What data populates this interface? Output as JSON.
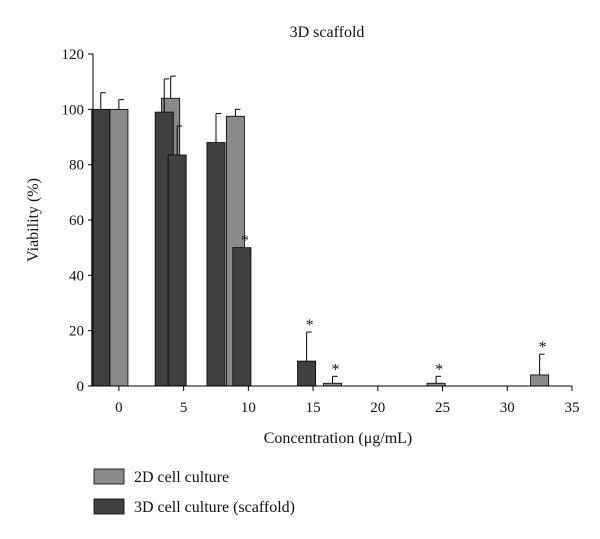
{
  "chart_data": {
    "type": "bar",
    "title": "3D scaffold",
    "xlabel": "Concentration (μg/mL)",
    "ylabel": "Viability (%)",
    "xlim": [
      -2,
      35
    ],
    "ylim": [
      0,
      120
    ],
    "xticks": [
      0,
      5,
      10,
      15,
      20,
      25,
      30,
      35
    ],
    "yticks": [
      0,
      20,
      40,
      60,
      80,
      100,
      120
    ],
    "grid": false,
    "legend_position": "bottom-left",
    "bar_width": 1.4,
    "series": [
      {
        "name": "2D cell culture",
        "color": "#8a8a8a",
        "bars": [
          {
            "x": 0,
            "value": 100,
            "error": 3.5,
            "significant": false
          },
          {
            "x": 4,
            "value": 104,
            "error": 8,
            "significant": false
          },
          {
            "x": 9,
            "value": 97.5,
            "error": 2.5,
            "significant": false
          },
          {
            "x": 16.5,
            "value": 1,
            "error": 2.5,
            "significant": true
          },
          {
            "x": 24.5,
            "value": 1,
            "error": 2.5,
            "significant": true
          },
          {
            "x": 32.5,
            "value": 4,
            "error": 7.5,
            "significant": true
          }
        ]
      },
      {
        "name": "3D cell culture (scaffold)",
        "color": "#404040",
        "bars": [
          {
            "x": -1.4,
            "value": 100,
            "error": 6,
            "significant": false
          },
          {
            "x": 3.5,
            "value": 99,
            "error": 12,
            "significant": false
          },
          {
            "x": 4.5,
            "value": 83.5,
            "error": 10.5,
            "significant": false
          },
          {
            "x": 7.5,
            "value": 88,
            "error": 10.5,
            "significant": false
          },
          {
            "x": 9.5,
            "value": 50,
            "error": 0,
            "significant": true
          },
          {
            "x": 14.5,
            "value": 9,
            "error": 10.5,
            "significant": true
          }
        ]
      }
    ],
    "significance_marker": "*"
  }
}
